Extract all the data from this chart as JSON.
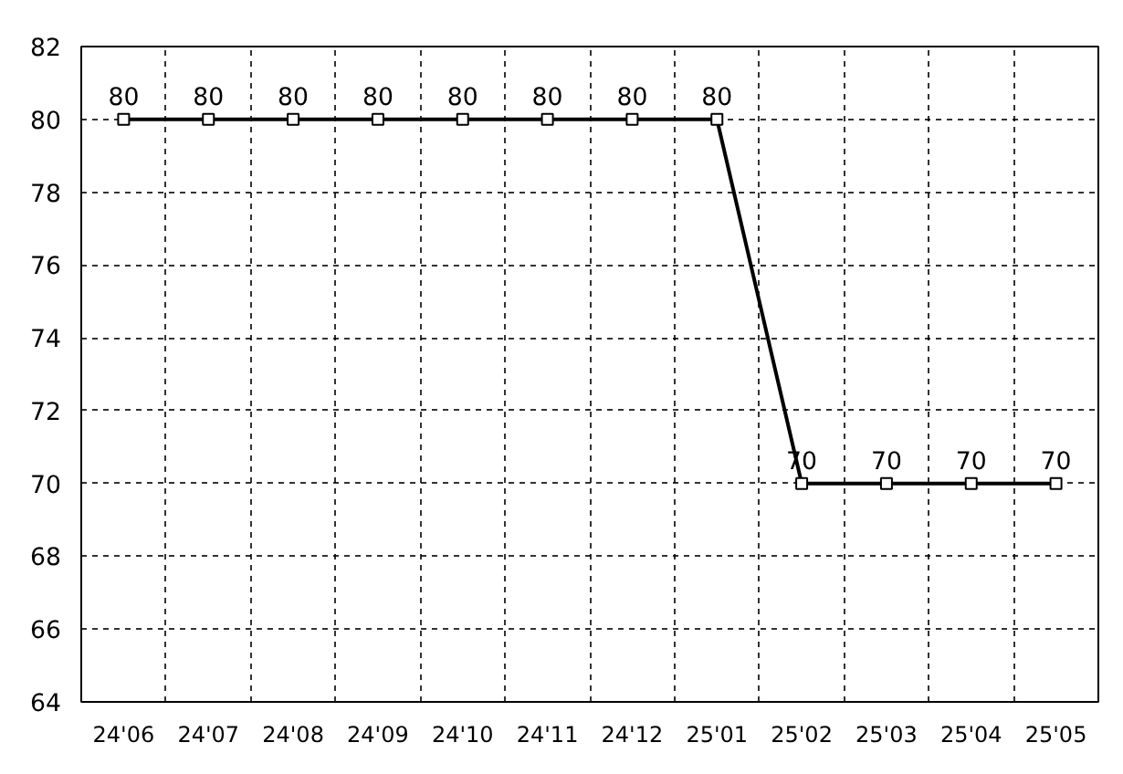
{
  "chart_data": {
    "type": "line",
    "categories": [
      "24'06",
      "24'07",
      "24'08",
      "24'09",
      "24'10",
      "24'11",
      "24'12",
      "25'01",
      "25'02",
      "25'03",
      "25'04",
      "25'05"
    ],
    "series": [
      {
        "color": "#000000",
        "values": [
          80,
          80,
          80,
          80,
          80,
          80,
          80,
          80,
          70,
          70,
          70,
          70
        ]
      }
    ],
    "ylim": [
      64,
      82
    ],
    "yticks": [
      64,
      66,
      68,
      70,
      72,
      74,
      76,
      78,
      80,
      82
    ],
    "grid": true,
    "marker": "square",
    "line_style": "solid",
    "data_labels": true
  }
}
